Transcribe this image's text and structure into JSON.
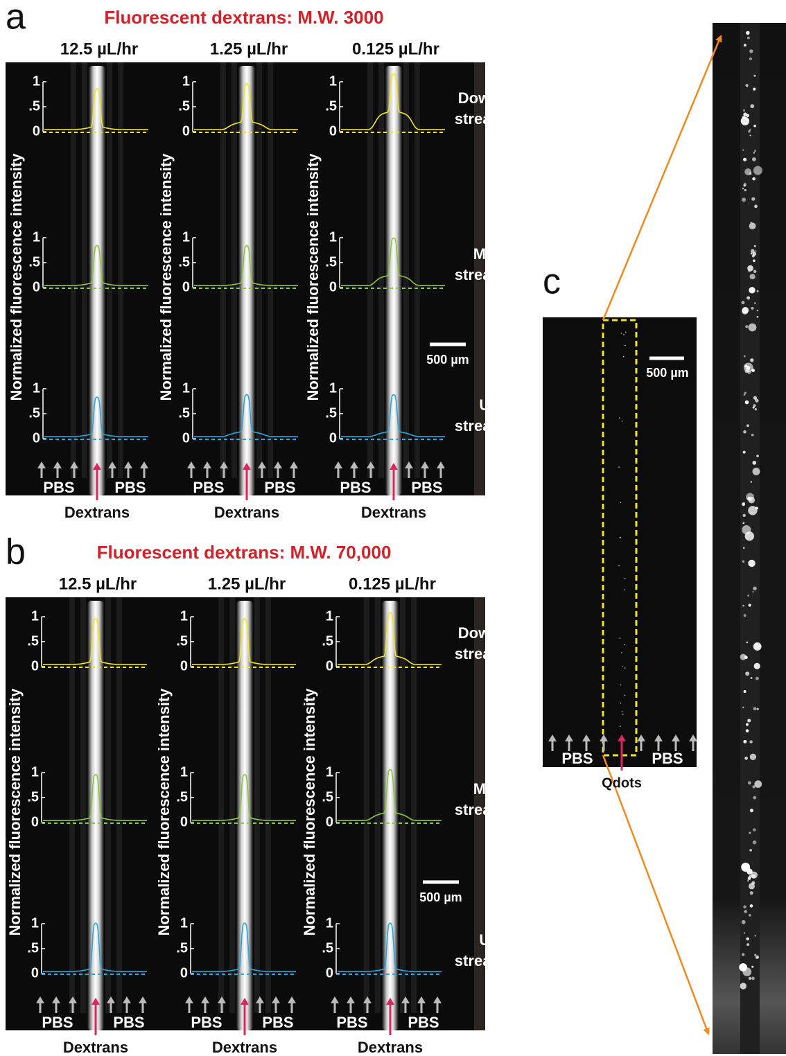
{
  "panels": [
    {
      "letter": "a",
      "title": "Fluorescent dextrans: M.W. 3000",
      "rates": [
        "12.5 µL/hr",
        "1.25 µL/hr",
        "0.125 µL/hr"
      ],
      "scale_bar": "500 µm"
    },
    {
      "letter": "b",
      "title": "Fluorescent dextrans: M.W. 70,000",
      "rates": [
        "12.5 µL/hr",
        "1.25 µL/hr",
        "0.125 µL/hr"
      ],
      "scale_bar": "500 µm"
    }
  ],
  "y_axis_label": "Normalized fluorescence intensity",
  "y_ticks": [
    "1",
    ".5",
    "0"
  ],
  "positions": [
    [
      "Down-",
      "stream"
    ],
    [
      "Mid-",
      "stream"
    ],
    [
      "Up-",
      "stream"
    ]
  ],
  "inlets": {
    "side": "PBS",
    "center": "Dextrans"
  },
  "panel_c": {
    "letter": "c",
    "scale_bar": "500 µm",
    "side": "PBS",
    "center": "Qdots"
  }
}
